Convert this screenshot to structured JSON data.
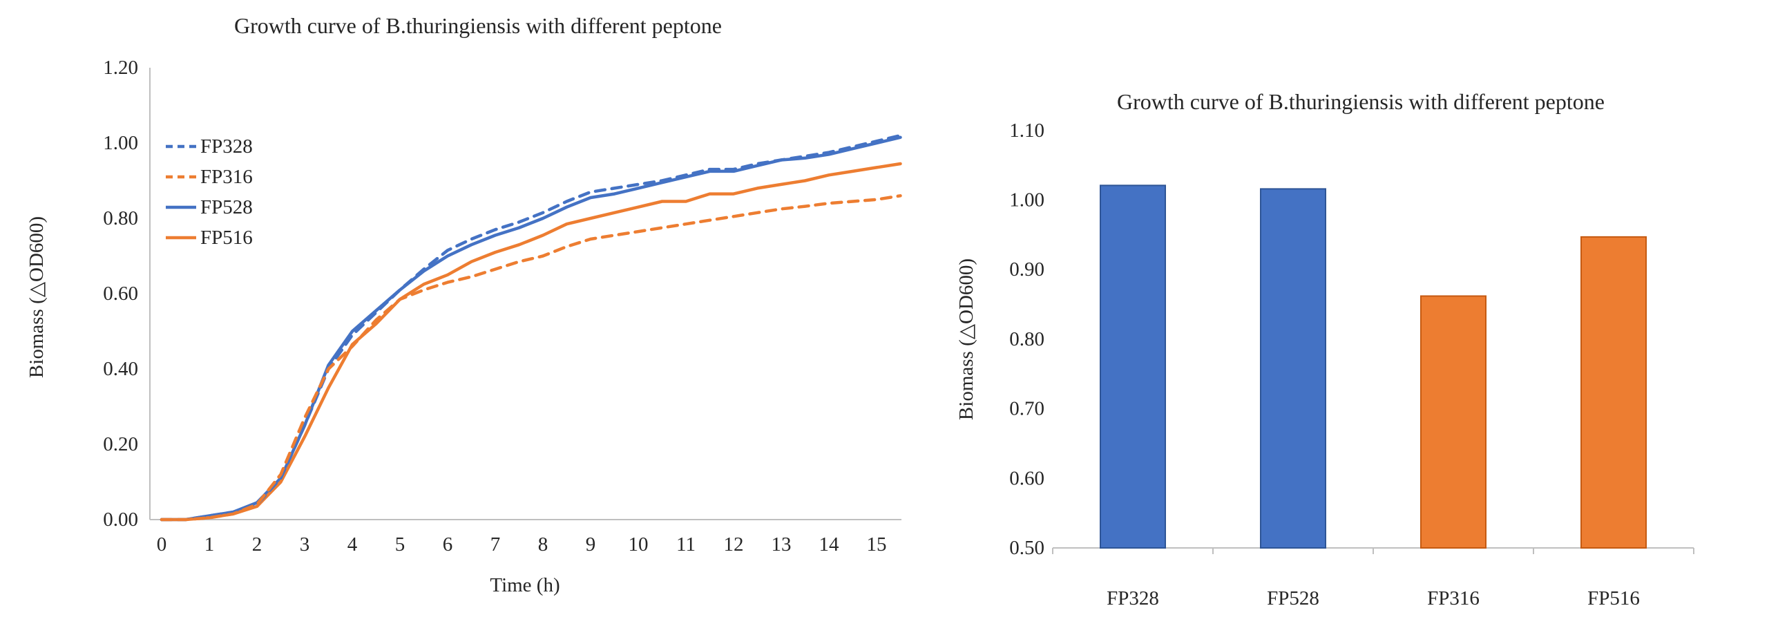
{
  "page": {
    "background": "#ffffff"
  },
  "colors": {
    "blue": "#4472C4",
    "orange": "#ED7D31",
    "blue_border": "#2E5596",
    "orange_border": "#C55A11",
    "axis_line": "#BFBFBF",
    "text": "#262626"
  },
  "chart_data": [
    {
      "type": "line",
      "title": "Growth curve of B.thuringiensis with different peptone",
      "xlabel": "Time (h)",
      "ylabel": "Biomass (△OD600)",
      "xlim": [
        0,
        15.5
      ],
      "ylim": [
        0.0,
        1.2
      ],
      "x_ticks": [
        0,
        1,
        2,
        3,
        4,
        5,
        6,
        7,
        8,
        9,
        10,
        11,
        12,
        13,
        14,
        15
      ],
      "y_ticks": [
        0.0,
        0.2,
        0.4,
        0.6,
        0.8,
        1.0,
        1.2
      ],
      "grid": false,
      "legend_position": "inside-top-left",
      "x": [
        0,
        0.5,
        1,
        1.5,
        2,
        2.5,
        3,
        3.5,
        4,
        4.5,
        5,
        5.5,
        6,
        6.5,
        7,
        7.5,
        8,
        8.5,
        9,
        9.5,
        10,
        10.5,
        11,
        11.5,
        12,
        12.5,
        13,
        13.5,
        14,
        14.5,
        15,
        15.5
      ],
      "series": [
        {
          "name": "FP328",
          "color": "#4472C4",
          "dash": true,
          "values": [
            0,
            0,
            0.01,
            0.02,
            0.04,
            0.11,
            0.25,
            0.4,
            0.49,
            0.55,
            0.61,
            0.665,
            0.715,
            0.745,
            0.77,
            0.79,
            0.815,
            0.845,
            0.87,
            0.88,
            0.89,
            0.9,
            0.915,
            0.93,
            0.93,
            0.945,
            0.955,
            0.965,
            0.975,
            0.99,
            1.005,
            1.02
          ]
        },
        {
          "name": "FP316",
          "color": "#ED7D31",
          "dash": true,
          "values": [
            0,
            0,
            0.005,
            0.015,
            0.04,
            0.12,
            0.27,
            0.4,
            0.46,
            0.53,
            0.585,
            0.61,
            0.63,
            0.645,
            0.665,
            0.685,
            0.7,
            0.725,
            0.745,
            0.755,
            0.765,
            0.775,
            0.785,
            0.795,
            0.805,
            0.815,
            0.825,
            0.832,
            0.84,
            0.845,
            0.85,
            0.86
          ]
        },
        {
          "name": "FP528",
          "color": "#4472C4",
          "dash": false,
          "values": [
            0,
            0,
            0.01,
            0.02,
            0.045,
            0.11,
            0.25,
            0.41,
            0.5,
            0.555,
            0.61,
            0.66,
            0.7,
            0.73,
            0.755,
            0.775,
            0.8,
            0.83,
            0.855,
            0.865,
            0.88,
            0.895,
            0.91,
            0.925,
            0.925,
            0.94,
            0.955,
            0.96,
            0.97,
            0.985,
            1.0,
            1.015
          ]
        },
        {
          "name": "FP516",
          "color": "#ED7D31",
          "dash": false,
          "values": [
            0,
            0,
            0.005,
            0.015,
            0.035,
            0.1,
            0.22,
            0.35,
            0.465,
            0.52,
            0.585,
            0.625,
            0.65,
            0.685,
            0.71,
            0.73,
            0.755,
            0.785,
            0.8,
            0.815,
            0.83,
            0.845,
            0.845,
            0.865,
            0.865,
            0.88,
            0.89,
            0.9,
            0.915,
            0.925,
            0.935,
            0.945
          ]
        }
      ]
    },
    {
      "type": "bar",
      "title": "Growth curve of B.thuringiensis with different peptone",
      "xlabel": "",
      "ylabel": "Biomass (△OD600)",
      "ylim": [
        0.5,
        1.1
      ],
      "y_ticks": [
        0.5,
        0.6,
        0.7,
        0.8,
        0.9,
        1.0,
        1.1
      ],
      "grid": false,
      "categories": [
        "FP328",
        "FP528",
        "FP316",
        "FP516"
      ],
      "values": [
        1.021,
        1.016,
        0.862,
        0.947
      ],
      "bar_colors": [
        "#4472C4",
        "#4472C4",
        "#ED7D31",
        "#ED7D31"
      ],
      "bar_borders": [
        "#2E5596",
        "#2E5596",
        "#C55A11",
        "#C55A11"
      ]
    }
  ]
}
